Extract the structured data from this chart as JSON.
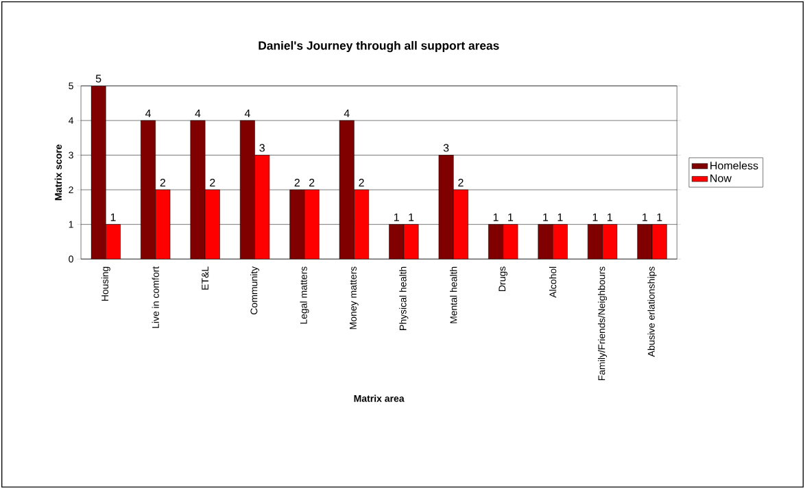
{
  "chart_data": {
    "type": "bar",
    "title": "Daniel's Journey through all support areas",
    "xlabel": "Matrix area",
    "ylabel": "Matrix score",
    "categories": [
      "Housing",
      "Live in comfort",
      "ET&L",
      "Community",
      "Legal matters",
      "Money matters",
      "Physical health",
      "Mental health",
      "Drugs",
      "Alcohol",
      "Family/Friends/Neighbours",
      "Abusive erlationships"
    ],
    "series": [
      {
        "name": "Homeless",
        "color": "#800000",
        "values": [
          5,
          4,
          4,
          4,
          2,
          4,
          1,
          3,
          1,
          1,
          1,
          1
        ]
      },
      {
        "name": "Now",
        "color": "#ff0000",
        "values": [
          1,
          2,
          2,
          3,
          2,
          2,
          1,
          2,
          1,
          1,
          1,
          1
        ]
      }
    ],
    "ylim": [
      0,
      5
    ],
    "yticks": [
      0,
      1,
      2,
      3,
      4,
      5
    ],
    "grid": "y",
    "legend": "right",
    "data_labels": true
  }
}
